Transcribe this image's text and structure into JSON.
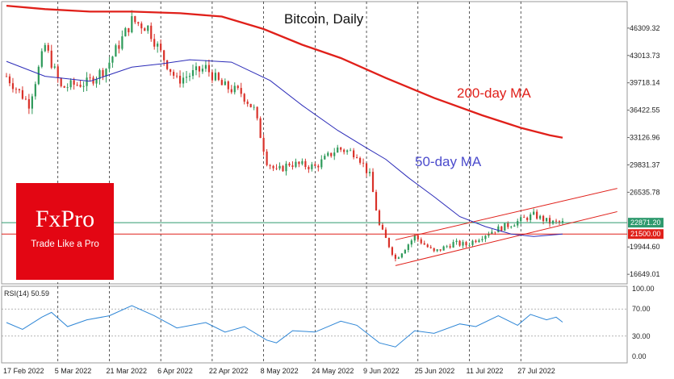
{
  "chart_data": [
    {
      "type": "candlestick",
      "title": "Bitcoin, Daily",
      "ylim": [
        15500,
        49500
      ],
      "price_ticks": [
        "46309.32",
        "43013.73",
        "39718.14",
        "36422.55",
        "33126.96",
        "29831.37",
        "26535.78",
        "19944.60",
        "16649.01"
      ],
      "date_labels": [
        "17 Feb 2022",
        "5 Mar 2022",
        "21 Mar 2022",
        "6 Apr 2022",
        "22 Apr 2022",
        "8 May 2022",
        "24 May 2022",
        "9 Jun 2022",
        "25 Jun 2022",
        "11 Jul 2022",
        "27 Jul 2022"
      ],
      "date_range": [
        "2022-02-17",
        "2022-08-09"
      ],
      "price_path": [
        {
          "date": "2022-02-17",
          "price": 40500
        },
        {
          "date": "2022-02-24",
          "price": 37200
        },
        {
          "date": "2022-03-01",
          "price": 44200
        },
        {
          "date": "2022-03-06",
          "price": 39100
        },
        {
          "date": "2022-03-10",
          "price": 39500
        },
        {
          "date": "2022-03-14",
          "price": 39700
        },
        {
          "date": "2022-03-20",
          "price": 41500
        },
        {
          "date": "2022-03-28",
          "price": 47200
        },
        {
          "date": "2022-04-02",
          "price": 46400
        },
        {
          "date": "2022-04-06",
          "price": 43300
        },
        {
          "date": "2022-04-11",
          "price": 40000
        },
        {
          "date": "2022-04-20",
          "price": 41500
        },
        {
          "date": "2022-04-25",
          "price": 39400
        },
        {
          "date": "2022-05-01",
          "price": 38500
        },
        {
          "date": "2022-05-05",
          "price": 36500
        },
        {
          "date": "2022-05-09",
          "price": 30300
        },
        {
          "date": "2022-05-12",
          "price": 29000
        },
        {
          "date": "2022-05-16",
          "price": 30000
        },
        {
          "date": "2022-05-24",
          "price": 29600
        },
        {
          "date": "2022-05-31",
          "price": 31800
        },
        {
          "date": "2022-06-06",
          "price": 31200
        },
        {
          "date": "2022-06-10",
          "price": 28500
        },
        {
          "date": "2022-06-13",
          "price": 22500
        },
        {
          "date": "2022-06-18",
          "price": 18500
        },
        {
          "date": "2022-06-24",
          "price": 21200
        },
        {
          "date": "2022-06-30",
          "price": 19300
        },
        {
          "date": "2022-07-06",
          "price": 20400
        },
        {
          "date": "2022-07-10",
          "price": 20200
        },
        {
          "date": "2022-07-17",
          "price": 21700
        },
        {
          "date": "2022-07-24",
          "price": 22700
        },
        {
          "date": "2022-07-31",
          "price": 23800
        },
        {
          "date": "2022-08-05",
          "price": 22900
        },
        {
          "date": "2022-08-09",
          "price": 22871
        }
      ],
      "series": [
        {
          "name": "50-day MA",
          "color": "#2b2bb8",
          "values": [
            {
              "date": "2022-02-17",
              "price": 42300
            },
            {
              "date": "2022-03-01",
              "price": 40500
            },
            {
              "date": "2022-03-15",
              "price": 39900
            },
            {
              "date": "2022-03-28",
              "price": 41600
            },
            {
              "date": "2022-04-06",
              "price": 42000
            },
            {
              "date": "2022-04-15",
              "price": 42500
            },
            {
              "date": "2022-04-28",
              "price": 42200
            },
            {
              "date": "2022-05-10",
              "price": 40000
            },
            {
              "date": "2022-05-20",
              "price": 37000
            },
            {
              "date": "2022-05-31",
              "price": 34000
            },
            {
              "date": "2022-06-08",
              "price": 32100
            },
            {
              "date": "2022-06-15",
              "price": 30500
            },
            {
              "date": "2022-06-22",
              "price": 28300
            },
            {
              "date": "2022-06-30",
              "price": 26000
            },
            {
              "date": "2022-07-08",
              "price": 23600
            },
            {
              "date": "2022-07-16",
              "price": 22400
            },
            {
              "date": "2022-07-24",
              "price": 21500
            },
            {
              "date": "2022-07-31",
              "price": 21200
            },
            {
              "date": "2022-08-09",
              "price": 21500
            }
          ]
        },
        {
          "name": "200-day MA",
          "color": "#e0201a",
          "values": [
            {
              "date": "2022-02-17",
              "price": 49000
            },
            {
              "date": "2022-03-01",
              "price": 48600
            },
            {
              "date": "2022-03-15",
              "price": 48300
            },
            {
              "date": "2022-03-28",
              "price": 48300
            },
            {
              "date": "2022-04-12",
              "price": 48100
            },
            {
              "date": "2022-04-25",
              "price": 47700
            },
            {
              "date": "2022-05-08",
              "price": 46200
            },
            {
              "date": "2022-05-20",
              "price": 44300
            },
            {
              "date": "2022-06-01",
              "price": 42700
            },
            {
              "date": "2022-06-15",
              "price": 40300
            },
            {
              "date": "2022-06-30",
              "price": 37900
            },
            {
              "date": "2022-07-15",
              "price": 35800
            },
            {
              "date": "2022-07-27",
              "price": 34300
            },
            {
              "date": "2022-08-05",
              "price": 33400
            },
            {
              "date": "2022-08-09",
              "price": 33100
            }
          ]
        }
      ],
      "channel": {
        "color": "#e0201a",
        "lower": [
          {
            "date": "2022-06-18",
            "price": 17700
          },
          {
            "date": "2022-08-26",
            "price": 24200
          }
        ],
        "upper": [
          {
            "date": "2022-06-18",
            "price": 20800
          },
          {
            "date": "2022-08-26",
            "price": 27000
          }
        ]
      },
      "levels": [
        {
          "price": 22871.2,
          "label": "22871.20",
          "color": "#2f9a6e"
        },
        {
          "price": 21500,
          "label": "21500.00",
          "color": "#e0201a"
        }
      ],
      "annotations": [
        {
          "text": "200-day MA",
          "color": "#e0201a"
        },
        {
          "text": "50-day MA",
          "color": "#4b4bcc"
        }
      ]
    },
    {
      "type": "line",
      "title": "RSI(14) 50.59",
      "ylim": [
        0,
        100
      ],
      "levels": [
        30,
        70
      ],
      "y_ticks": [
        "100.00",
        "70.00",
        "30.00",
        "0.00"
      ],
      "series": [
        {
          "name": "RSI(14)",
          "color": "#2e86d6",
          "values": [
            {
              "date": "2022-02-17",
              "value": 50
            },
            {
              "date": "2022-02-22",
              "value": 40
            },
            {
              "date": "2022-02-28",
              "value": 58
            },
            {
              "date": "2022-03-03",
              "value": 65
            },
            {
              "date": "2022-03-08",
              "value": 44
            },
            {
              "date": "2022-03-14",
              "value": 54
            },
            {
              "date": "2022-03-21",
              "value": 60
            },
            {
              "date": "2022-03-28",
              "value": 75
            },
            {
              "date": "2022-04-04",
              "value": 60
            },
            {
              "date": "2022-04-11",
              "value": 42
            },
            {
              "date": "2022-04-20",
              "value": 50
            },
            {
              "date": "2022-04-26",
              "value": 36
            },
            {
              "date": "2022-05-02",
              "value": 44
            },
            {
              "date": "2022-05-09",
              "value": 24
            },
            {
              "date": "2022-05-12",
              "value": 20
            },
            {
              "date": "2022-05-17",
              "value": 38
            },
            {
              "date": "2022-05-24",
              "value": 36
            },
            {
              "date": "2022-06-01",
              "value": 52
            },
            {
              "date": "2022-06-06",
              "value": 46
            },
            {
              "date": "2022-06-13",
              "value": 20
            },
            {
              "date": "2022-06-18",
              "value": 14
            },
            {
              "date": "2022-06-24",
              "value": 38
            },
            {
              "date": "2022-06-30",
              "value": 34
            },
            {
              "date": "2022-07-08",
              "value": 48
            },
            {
              "date": "2022-07-13",
              "value": 44
            },
            {
              "date": "2022-07-20",
              "value": 60
            },
            {
              "date": "2022-07-26",
              "value": 46
            },
            {
              "date": "2022-07-30",
              "value": 62
            },
            {
              "date": "2022-08-04",
              "value": 54
            },
            {
              "date": "2022-08-07",
              "value": 58
            },
            {
              "date": "2022-08-09",
              "value": 50.59
            }
          ]
        }
      ]
    }
  ],
  "brand": {
    "name": "FxPro",
    "tagline": "Trade Like a Pro",
    "color": "#e30613"
  }
}
